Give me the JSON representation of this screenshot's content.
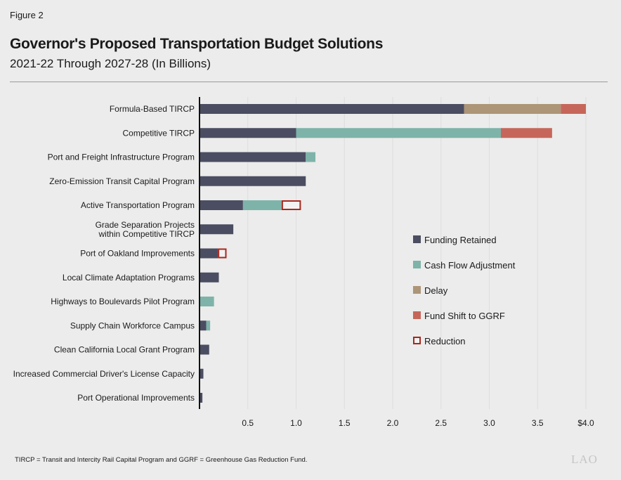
{
  "figure_label": "Figure 2",
  "footnote": "TIRCP = Transit and Intercity Rail Capital Program and GGRF = Greenhouse Gas Reduction Fund.",
  "logo_text": "LAO",
  "chart_data": {
    "type": "bar",
    "orientation": "horizontal",
    "stacked": true,
    "title": "Governor's Proposed Transportation Budget Solutions",
    "subtitle": "2021-22 Through 2027-28 (In Billions)",
    "xlim": [
      0,
      4.0
    ],
    "xticks": [
      0.5,
      1.0,
      1.5,
      2.0,
      2.5,
      3.0,
      3.5,
      4.0
    ],
    "xtick_labels": [
      "0.5",
      "1.0",
      "1.5",
      "2.0",
      "2.5",
      "3.0",
      "3.5",
      "$4.0"
    ],
    "grid": true,
    "legend_position": "right",
    "categories": [
      "Formula-Based TIRCP",
      "Competitive TIRCP",
      "Port and Freight Infrastructure Program",
      "Zero-Emission Transit Capital Program",
      "Active Transportation Program",
      "Grade Separation Projects\nwithin Competitive TIRCP",
      "Port of Oakland Improvements",
      "Local Climate Adaptation Programs",
      "Highways to Boulevards Pilot Program",
      "Supply Chain Workforce Campus",
      "Clean California Local Grant Program",
      "Increased Commercial Driver's License Capacity",
      "Port Operational Improvements"
    ],
    "series": [
      {
        "name": "Funding Retained",
        "color": "#4b4d62",
        "style": "fill",
        "values": [
          2.74,
          1.0,
          1.1,
          1.1,
          0.45,
          0.35,
          0.19,
          0.2,
          0,
          0.07,
          0.1,
          0.04,
          0.03
        ]
      },
      {
        "name": "Cash Flow Adjustment",
        "color": "#7eb3aa",
        "style": "fill",
        "values": [
          0,
          2.12,
          0.1,
          0,
          0.4,
          0,
          0,
          0,
          0.15,
          0.04,
          0,
          0,
          0
        ]
      },
      {
        "name": "Delay",
        "color": "#ad9577",
        "style": "fill",
        "values": [
          1.0,
          0,
          0,
          0,
          0,
          0,
          0,
          0,
          0,
          0,
          0,
          0,
          0
        ]
      },
      {
        "name": "Fund Shift to GGRF",
        "color": "#c6665a",
        "style": "fill",
        "values": [
          0.26,
          0.53,
          0,
          0,
          0,
          0,
          0,
          0,
          0,
          0,
          0,
          0,
          0
        ]
      },
      {
        "name": "Reduction",
        "color": "#a8281f",
        "style": "outline",
        "values": [
          0,
          0,
          0,
          0,
          0.2,
          0,
          0.09,
          0,
          0,
          0,
          0,
          0,
          0
        ]
      }
    ]
  }
}
